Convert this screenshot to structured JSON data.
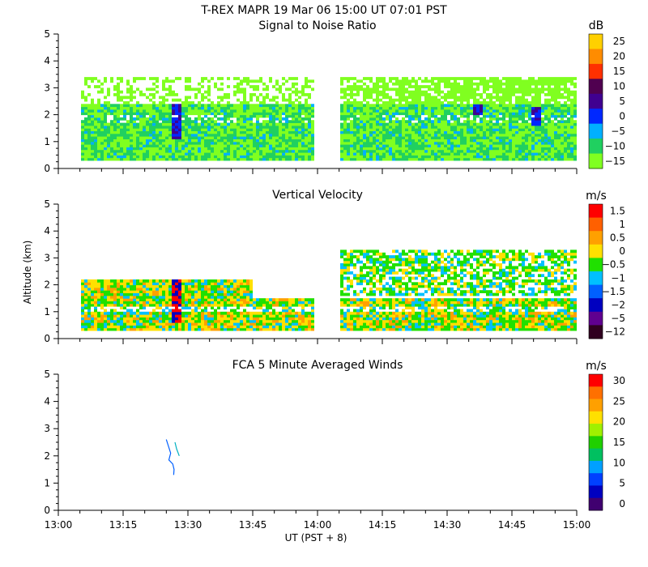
{
  "page": {
    "title": "T-REX   MAPR 19 Mar 06   15:00 UT   07:01   PST",
    "xlabel": "UT  (PST + 8)",
    "x_ticks": [
      "13:00",
      "13:15",
      "13:30",
      "13:45",
      "14:00",
      "14:15",
      "14:30",
      "14:45",
      "15:00"
    ]
  },
  "chart_data": [
    {
      "type": "heatmap",
      "title": "Signal to Noise Ratio",
      "ylabel": "",
      "ylim": [
        0,
        5
      ],
      "y_ticks": [
        "0",
        "1",
        "2",
        "3",
        "4",
        "5"
      ],
      "xlim": [
        "13:00",
        "15:00"
      ],
      "colorbar_unit": "dB",
      "colorbar_labels": [
        "25",
        "20",
        "15",
        "10",
        "5",
        "0",
        "−5",
        "−10",
        "−15"
      ],
      "colorbar_colors": [
        "#ffd000",
        "#ff8c00",
        "#ff3000",
        "#500050",
        "#400090",
        "#0028ff",
        "#00b0ff",
        "#20d060",
        "#80ff20"
      ],
      "data_gaps": [
        [
          "13:00",
          "13:05"
        ],
        [
          "13:59",
          "14:05"
        ]
      ],
      "data_coverage_km": [
        0.3,
        3.4
      ]
    },
    {
      "type": "heatmap",
      "title": "Vertical Velocity",
      "ylabel": "Altitude (km)",
      "ylim": [
        0,
        5
      ],
      "y_ticks": [
        "0",
        "1",
        "2",
        "3",
        "4",
        "5"
      ],
      "xlim": [
        "13:00",
        "15:00"
      ],
      "colorbar_unit": "m/s",
      "colorbar_labels": [
        "1.5",
        "1",
        "0.5",
        "0",
        "−0.5",
        "−1",
        "−1.5",
        "−2",
        "−5",
        "−12"
      ],
      "colorbar_colors": [
        "#ff0000",
        "#ff6000",
        "#ffa000",
        "#ffe000",
        "#20e000",
        "#00c0ff",
        "#0060ff",
        "#0000c0",
        "#600090",
        "#300020"
      ],
      "data_gaps": [
        [
          "13:00",
          "13:05"
        ],
        [
          "13:59",
          "14:05"
        ]
      ],
      "data_coverage_km": [
        0.3,
        3.3
      ]
    },
    {
      "type": "line",
      "title": "FCA 5 Minute Averaged Winds",
      "ylabel": "",
      "ylim": [
        0,
        5
      ],
      "y_ticks": [
        "0",
        "1",
        "2",
        "3",
        "4",
        "5"
      ],
      "xlim": [
        "13:00",
        "15:00"
      ],
      "colorbar_unit": "m/s",
      "colorbar_labels": [
        "30",
        "25",
        "20",
        "15",
        "10",
        "5",
        "0"
      ],
      "colorbar_colors": [
        "#ff0000",
        "#ff7000",
        "#ffa000",
        "#ffe000",
        "#a0f000",
        "#20d000",
        "#00c060",
        "#00a0ff",
        "#0040ff",
        "#0000c0",
        "#400070"
      ],
      "series": [
        {
          "time": "13:25",
          "x": [
            0.0,
            0.05,
            0.1,
            0.06,
            0.15,
            0.18,
            0.17
          ],
          "y": [
            2.6,
            2.35,
            2.1,
            1.85,
            1.7,
            1.5,
            1.3
          ]
        },
        {
          "time": "13:27",
          "x": [
            0.0,
            0.04,
            0.1
          ],
          "y": [
            2.5,
            2.25,
            2.0
          ]
        }
      ]
    }
  ]
}
